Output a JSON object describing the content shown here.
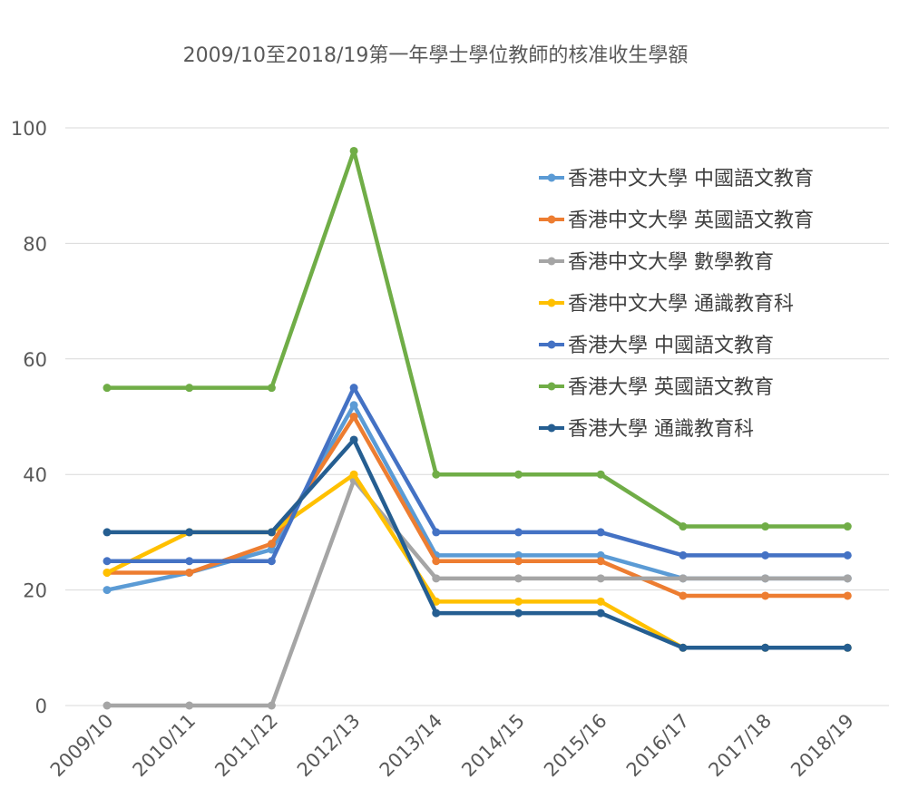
{
  "chart_data": {
    "type": "line",
    "title": "2009/10至2018/19第一年學士學位教師的核准收生學額",
    "xlabel": "",
    "ylabel": "",
    "categories": [
      "2009/10",
      "2010/11",
      "2011/12",
      "2012/13",
      "2013/14",
      "2014/15",
      "2015/16",
      "2016/17",
      "2017/18",
      "2018/19"
    ],
    "ylim": [
      0,
      100
    ],
    "yticks": [
      0,
      20,
      40,
      60,
      80,
      100
    ],
    "grid": true,
    "legend_position": "top-right",
    "series": [
      {
        "name": "香港中文大學 中國語文教育",
        "color": "#5B9BD5",
        "values": [
          20,
          23,
          27,
          52,
          26,
          26,
          26,
          22,
          22,
          22
        ]
      },
      {
        "name": "香港中文大學 英國語文教育",
        "color": "#ED7D31",
        "values": [
          23,
          23,
          28,
          50,
          25,
          25,
          25,
          19,
          19,
          19
        ]
      },
      {
        "name": "香港中文大學 數學教育",
        "color": "#A5A5A5",
        "values": [
          0,
          0,
          0,
          39,
          22,
          22,
          22,
          22,
          22,
          22
        ]
      },
      {
        "name": "香港中文大學 通識教育科",
        "color": "#FFC000",
        "values": [
          23,
          30,
          30,
          40,
          18,
          18,
          18,
          10,
          10,
          10
        ]
      },
      {
        "name": "香港大學 中國語文教育",
        "color": "#4472C4",
        "values": [
          25,
          25,
          25,
          55,
          30,
          30,
          30,
          26,
          26,
          26
        ]
      },
      {
        "name": "香港大學 英國語文教育",
        "color": "#70AD47",
        "values": [
          55,
          55,
          55,
          96,
          40,
          40,
          40,
          31,
          31,
          31
        ]
      },
      {
        "name": "香港大學 通識教育科",
        "color": "#255E91",
        "values": [
          30,
          30,
          30,
          46,
          16,
          16,
          16,
          10,
          10,
          10
        ]
      }
    ]
  }
}
